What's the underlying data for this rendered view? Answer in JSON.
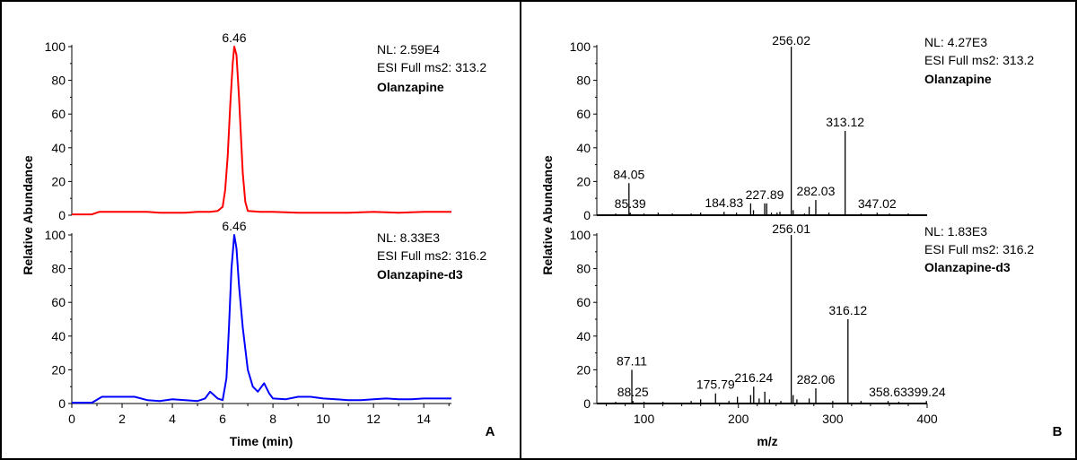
{
  "chart_data": [
    {
      "type": "line",
      "panel_label": "A",
      "xlabel": "Time (min)",
      "ylabel": "Relative Abundance",
      "xlim": [
        0,
        15.1
      ],
      "ylim": [
        0,
        100
      ],
      "xticks": [
        0,
        2,
        4,
        6,
        8,
        10,
        12,
        14
      ],
      "yticks": [
        0,
        20,
        40,
        60,
        80,
        100
      ],
      "grid": false,
      "traces": [
        {
          "color": "#ff0000",
          "peak_label": "6.46",
          "info": [
            "NL: 2.59E4",
            "ESI Full ms2: 313.2",
            "Olanzapine"
          ],
          "points": [
            [
              0,
              0.5
            ],
            [
              0.8,
              0.5
            ],
            [
              1.1,
              2
            ],
            [
              1.5,
              2
            ],
            [
              3,
              2
            ],
            [
              3.5,
              1.5
            ],
            [
              4,
              1.5
            ],
            [
              4.5,
              1.5
            ],
            [
              5,
              2
            ],
            [
              5.5,
              2
            ],
            [
              5.8,
              2.5
            ],
            [
              6.0,
              5
            ],
            [
              6.1,
              15
            ],
            [
              6.2,
              35
            ],
            [
              6.3,
              65
            ],
            [
              6.4,
              90
            ],
            [
              6.46,
              100
            ],
            [
              6.55,
              95
            ],
            [
              6.65,
              70
            ],
            [
              6.8,
              25
            ],
            [
              6.9,
              8
            ],
            [
              7.0,
              2.5
            ],
            [
              7.5,
              2
            ],
            [
              8,
              2
            ],
            [
              9,
              1.5
            ],
            [
              10,
              1.5
            ],
            [
              11,
              1.5
            ],
            [
              12,
              2
            ],
            [
              13,
              1.5
            ],
            [
              14,
              2
            ],
            [
              15.1,
              2
            ]
          ]
        },
        {
          "color": "#0000ff",
          "peak_label": "6.46",
          "info": [
            "NL: 8.33E3",
            "ESI Full ms2: 316.2",
            "Olanzapine-d3"
          ],
          "points": [
            [
              0,
              0.5
            ],
            [
              0.8,
              0.5
            ],
            [
              1.2,
              4
            ],
            [
              1.8,
              4
            ],
            [
              2.5,
              4
            ],
            [
              3,
              2
            ],
            [
              3.5,
              1.5
            ],
            [
              4,
              2.5
            ],
            [
              4.5,
              2
            ],
            [
              5,
              1.5
            ],
            [
              5.3,
              3
            ],
            [
              5.5,
              7
            ],
            [
              5.8,
              3
            ],
            [
              6.0,
              2
            ],
            [
              6.15,
              15
            ],
            [
              6.25,
              45
            ],
            [
              6.35,
              80
            ],
            [
              6.46,
              100
            ],
            [
              6.55,
              92
            ],
            [
              6.65,
              70
            ],
            [
              6.8,
              45
            ],
            [
              7.0,
              20
            ],
            [
              7.2,
              10
            ],
            [
              7.4,
              7
            ],
            [
              7.65,
              12
            ],
            [
              7.85,
              6
            ],
            [
              8,
              3
            ],
            [
              8.5,
              2.5
            ],
            [
              9,
              4
            ],
            [
              9.5,
              4
            ],
            [
              10,
              3
            ],
            [
              10.5,
              2.5
            ],
            [
              11,
              2
            ],
            [
              11.5,
              2
            ],
            [
              12,
              2.5
            ],
            [
              12.5,
              3
            ],
            [
              13,
              2.5
            ],
            [
              13.5,
              2.5
            ],
            [
              14,
              3
            ],
            [
              14.5,
              3
            ],
            [
              15.1,
              3
            ]
          ]
        }
      ]
    },
    {
      "type": "bar",
      "panel_label": "B",
      "xlabel": "m/z",
      "ylabel": "Relative Abundance",
      "xlim": [
        50,
        400
      ],
      "ylim": [
        0,
        100
      ],
      "xticks": [
        100,
        200,
        300,
        400
      ],
      "yticks": [
        0,
        20,
        40,
        60,
        80,
        100
      ],
      "grid": false,
      "spectra": [
        {
          "info": [
            "NL: 4.27E3",
            "ESI Full ms2: 313.2",
            "Olanzapine"
          ],
          "peaks": [
            [
              70,
              1
            ],
            [
              84.05,
              19
            ],
            [
              85.39,
              1.5
            ],
            [
              100,
              1
            ],
            [
              115,
              1.5
            ],
            [
              130,
              1
            ],
            [
              150,
              1
            ],
            [
              160,
              1.5
            ],
            [
              184.83,
              2
            ],
            [
              198,
              1.5
            ],
            [
              213,
              7
            ],
            [
              216,
              3
            ],
            [
              227.89,
              7
            ],
            [
              230,
              7
            ],
            [
              235,
              1.5
            ],
            [
              241,
              1.5
            ],
            [
              244,
              2
            ],
            [
              256.02,
              100
            ],
            [
              258,
              3
            ],
            [
              270,
              1
            ],
            [
              275,
              5
            ],
            [
              282.03,
              9
            ],
            [
              296,
              1.5
            ],
            [
              313.12,
              50
            ],
            [
              330,
              1
            ],
            [
              347.02,
              1.5
            ],
            [
              360,
              1
            ],
            [
              380,
              1
            ]
          ],
          "labels": [
            {
              "text": "256.02",
              "x": 256.02,
              "y": 100
            },
            {
              "text": "313.12",
              "x": 313.12,
              "y": 50
            },
            {
              "text": "84.05",
              "x": 84.05,
              "y": 19
            },
            {
              "text": "85.39",
              "x": 85.39,
              "y": 1.5
            },
            {
              "text": "184.83",
              "x": 184.83,
              "y": 2
            },
            {
              "text": "227.89",
              "x": 227.89,
              "y": 7
            },
            {
              "text": "282.03",
              "x": 282.03,
              "y": 9
            },
            {
              "text": "347.02",
              "x": 347.02,
              "y": 1.5
            }
          ]
        },
        {
          "info": [
            "NL: 1.83E3",
            "ESI Full ms2: 316.2",
            "Olanzapine-d3"
          ],
          "peaks": [
            [
              70,
              1
            ],
            [
              87.11,
              20
            ],
            [
              88.25,
              1.5
            ],
            [
              100,
              1
            ],
            [
              120,
              1
            ],
            [
              150,
              1.5
            ],
            [
              160,
              2.5
            ],
            [
              175.79,
              6
            ],
            [
              190,
              1.5
            ],
            [
              199,
              4
            ],
            [
              213,
              5
            ],
            [
              216.24,
              10
            ],
            [
              222,
              3
            ],
            [
              228,
              7
            ],
            [
              233,
              2.5
            ],
            [
              245,
              1.5
            ],
            [
              256.01,
              100
            ],
            [
              258,
              5
            ],
            [
              262,
              2.5
            ],
            [
              275,
              3
            ],
            [
              282.06,
              9
            ],
            [
              300,
              1.5
            ],
            [
              316.12,
              50
            ],
            [
              330,
              1.5
            ],
            [
              358.63,
              1.5
            ],
            [
              370,
              1
            ],
            [
              399.24,
              1.5
            ]
          ],
          "labels": [
            {
              "text": "256.01",
              "x": 256.01,
              "y": 100
            },
            {
              "text": "316.12",
              "x": 316.12,
              "y": 50
            },
            {
              "text": "87.11",
              "x": 87.11,
              "y": 20
            },
            {
              "text": "88.25",
              "x": 88.25,
              "y": 1.5
            },
            {
              "text": "175.79",
              "x": 175.79,
              "y": 6
            },
            {
              "text": "216.24",
              "x": 216.24,
              "y": 10
            },
            {
              "text": "282.06",
              "x": 282.06,
              "y": 9
            },
            {
              "text": "358.63",
              "x": 358.63,
              "y": 1.5
            },
            {
              "text": "399.24",
              "x": 399.24,
              "y": 1.5
            }
          ]
        }
      ]
    }
  ]
}
